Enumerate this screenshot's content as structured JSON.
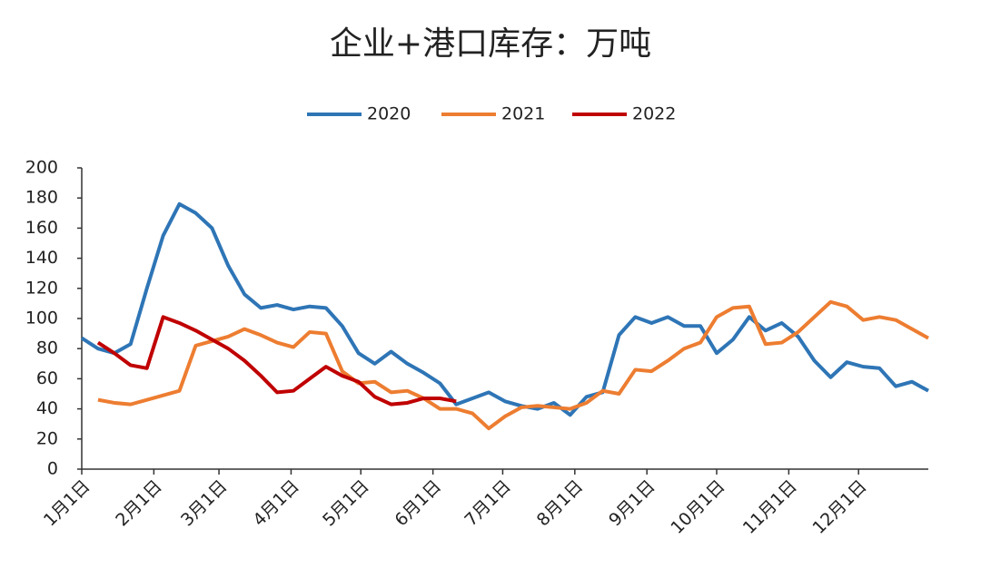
{
  "chart_data": {
    "type": "line",
    "title": "企业+港口库存：万吨",
    "x": [
      0,
      7,
      14,
      21,
      28,
      35,
      42,
      49,
      56,
      63,
      70,
      77,
      84,
      91,
      98,
      105,
      112,
      119,
      126,
      133,
      140,
      147,
      154,
      161,
      168,
      175,
      182,
      189,
      196,
      203,
      210,
      217,
      224,
      231,
      238,
      245,
      252,
      259,
      266,
      273,
      280,
      287,
      294,
      301,
      308,
      315,
      322,
      329,
      336,
      343,
      350,
      357,
      364
    ],
    "xlim": [
      0,
      364
    ],
    "xticks": [
      {
        "value": 0,
        "label": "1月1日"
      },
      {
        "value": 31,
        "label": "2月1日"
      },
      {
        "value": 59,
        "label": "3月1日"
      },
      {
        "value": 90,
        "label": "4月1日"
      },
      {
        "value": 120,
        "label": "5月1日"
      },
      {
        "value": 151,
        "label": "6月1日"
      },
      {
        "value": 181,
        "label": "7月1日"
      },
      {
        "value": 212,
        "label": "8月1日"
      },
      {
        "value": 243,
        "label": "9月1日"
      },
      {
        "value": 273,
        "label": "10月1日"
      },
      {
        "value": 304,
        "label": "11月1日"
      },
      {
        "value": 334,
        "label": "12月1日"
      }
    ],
    "ylim": [
      0,
      200
    ],
    "yticks": [
      0,
      20,
      40,
      60,
      80,
      100,
      120,
      140,
      160,
      180,
      200
    ],
    "series": [
      {
        "name": "2020",
        "color": "#2e75b6",
        "values": [
          87,
          80,
          77,
          83,
          120,
          155,
          176,
          170,
          160,
          135,
          116,
          107,
          109,
          106,
          108,
          107,
          95,
          77,
          70,
          78,
          70,
          64,
          57,
          43,
          47,
          51,
          45,
          42,
          40,
          44,
          36,
          48,
          51,
          89,
          101,
          97,
          101,
          95,
          95,
          77,
          86,
          101,
          92,
          97,
          88,
          72,
          61,
          71,
          68,
          67,
          55,
          58,
          52
        ]
      },
      {
        "name": "2021",
        "color": "#ed7d31",
        "values": [
          null,
          46,
          44,
          43,
          46,
          49,
          52,
          82,
          85,
          88,
          93,
          89,
          84,
          81,
          91,
          90,
          65,
          57,
          58,
          51,
          52,
          47,
          40,
          40,
          37,
          27,
          35,
          41,
          42,
          41,
          40,
          44,
          52,
          50,
          66,
          65,
          72,
          80,
          84,
          101,
          107,
          108,
          83,
          84,
          91,
          101,
          111,
          108,
          99,
          101,
          99,
          93,
          87
        ]
      },
      {
        "name": "2022",
        "color": "#c00000",
        "values": [
          null,
          84,
          77,
          69,
          67,
          101,
          97,
          92,
          86,
          80,
          72,
          62,
          51,
          52,
          60,
          68,
          62,
          58,
          48,
          43,
          44,
          47,
          47,
          45,
          null,
          null,
          null,
          null,
          null,
          null,
          null,
          null,
          null,
          null,
          null,
          null,
          null,
          null,
          null,
          null,
          null,
          null,
          null,
          null,
          null,
          null,
          null,
          null,
          null,
          null,
          null,
          null,
          null
        ]
      }
    ]
  }
}
